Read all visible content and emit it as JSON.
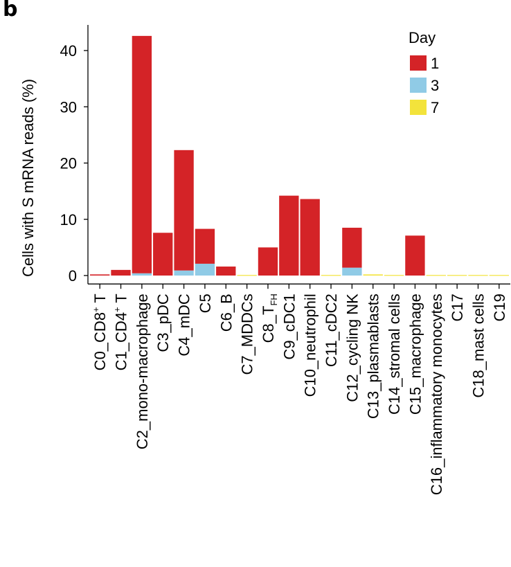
{
  "panel_label": "b",
  "colors": {
    "day1": "#d42327",
    "day3": "#90cbe6",
    "day7": "#f3e33b",
    "axis": "#000000"
  },
  "chart_data": {
    "type": "bar",
    "stacked": true,
    "title": "",
    "ylabel": "Cells with S mRNA reads (%)",
    "xlabel": "",
    "ylim": [
      -1.5,
      45
    ],
    "yticks": [
      0,
      10,
      20,
      30,
      40
    ],
    "grid": false,
    "legend": {
      "title": "Day",
      "placement": "top-right"
    },
    "categories": [
      {
        "base": "C0_CD8",
        "sup": "+",
        "suffix": " T"
      },
      {
        "base": "C1_CD4",
        "sup": "+",
        "suffix": " T"
      },
      {
        "base": "C2_mono-macrophage"
      },
      {
        "base": "C3_pDC"
      },
      {
        "base": "C4_mDC"
      },
      {
        "base": "C5"
      },
      {
        "base": "C6_B"
      },
      {
        "base": "C7_MDDCs"
      },
      {
        "base": "C8_T",
        "sub": "FH"
      },
      {
        "base": "C9_cDC1"
      },
      {
        "base": "C10_neutrophil"
      },
      {
        "base": "C11_cDC2"
      },
      {
        "base": "C12_cycling NK"
      },
      {
        "base": "C13_plasmablasts"
      },
      {
        "base": "C14_stromal cells"
      },
      {
        "base": "C15_macrophage"
      },
      {
        "base": "C16_inflammatory monocytes"
      },
      {
        "base": "C17"
      },
      {
        "base": "C18_mast cells"
      },
      {
        "base": "C19"
      }
    ],
    "series": [
      {
        "name": "1",
        "color": "#d42327",
        "values": [
          0.2,
          1.0,
          42.2,
          7.6,
          21.4,
          6.2,
          1.6,
          0,
          5.0,
          14.2,
          13.6,
          0,
          7.1,
          0,
          0,
          7.1,
          0,
          0,
          0,
          0
        ]
      },
      {
        "name": "3",
        "color": "#90cbe6",
        "values": [
          0,
          0,
          0.4,
          0,
          0.9,
          2.1,
          0,
          0,
          0,
          0,
          0,
          0,
          1.4,
          0,
          0,
          0,
          0,
          0,
          0,
          0
        ]
      },
      {
        "name": "7",
        "color": "#f3e33b",
        "values": [
          0,
          0,
          0,
          0,
          0,
          0,
          0,
          0.1,
          0,
          0,
          0,
          0.1,
          0,
          0.2,
          0.1,
          0,
          0.1,
          0.1,
          0.1,
          0.1
        ]
      }
    ]
  }
}
